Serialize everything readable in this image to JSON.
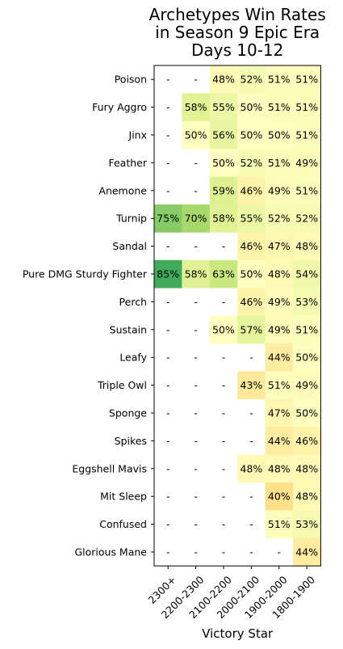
{
  "chart_data": {
    "type": "heatmap",
    "title_lines": [
      "Archetypes Win Rates",
      "in Season 9 Epic Era",
      "Days 10-12"
    ],
    "xlabel": "Victory Star",
    "columns": [
      "2300+",
      "2200-2300",
      "2100-2200",
      "2000-2100",
      "1900-2000",
      "1800-1900"
    ],
    "rows": [
      "Poison",
      "Fury Aggro",
      "Jinx",
      "Feather",
      "Anemone",
      "Turnip",
      "Sandal",
      "Pure DMG Sturdy Fighter",
      "Perch",
      "Sustain",
      "Leafy",
      "Triple Owl",
      "Sponge",
      "Spikes",
      "Eggshell Mavis",
      "Mit Sleep",
      "Confused",
      "Glorious Mane"
    ],
    "values": [
      [
        null,
        null,
        48,
        52,
        51,
        51
      ],
      [
        null,
        58,
        55,
        50,
        51,
        51
      ],
      [
        null,
        50,
        56,
        50,
        50,
        51
      ],
      [
        null,
        null,
        50,
        52,
        51,
        49
      ],
      [
        null,
        null,
        59,
        46,
        49,
        51
      ],
      [
        75,
        70,
        58,
        55,
        52,
        52
      ],
      [
        null,
        null,
        null,
        46,
        47,
        48
      ],
      [
        85,
        58,
        63,
        50,
        48,
        54
      ],
      [
        null,
        null,
        null,
        46,
        49,
        53
      ],
      [
        null,
        null,
        50,
        57,
        49,
        51
      ],
      [
        null,
        null,
        null,
        null,
        44,
        50
      ],
      [
        null,
        null,
        null,
        43,
        51,
        49
      ],
      [
        null,
        null,
        null,
        null,
        47,
        50
      ],
      [
        null,
        null,
        null,
        null,
        44,
        46
      ],
      [
        null,
        null,
        null,
        48,
        48,
        48
      ],
      [
        null,
        null,
        null,
        null,
        40,
        48
      ],
      [
        null,
        null,
        null,
        null,
        51,
        53
      ],
      [
        null,
        null,
        null,
        null,
        null,
        44
      ]
    ],
    "missing_label": "-",
    "value_suffix": "%",
    "colormap": "RdYlGn",
    "vmin": 0,
    "vmax": 100
  }
}
